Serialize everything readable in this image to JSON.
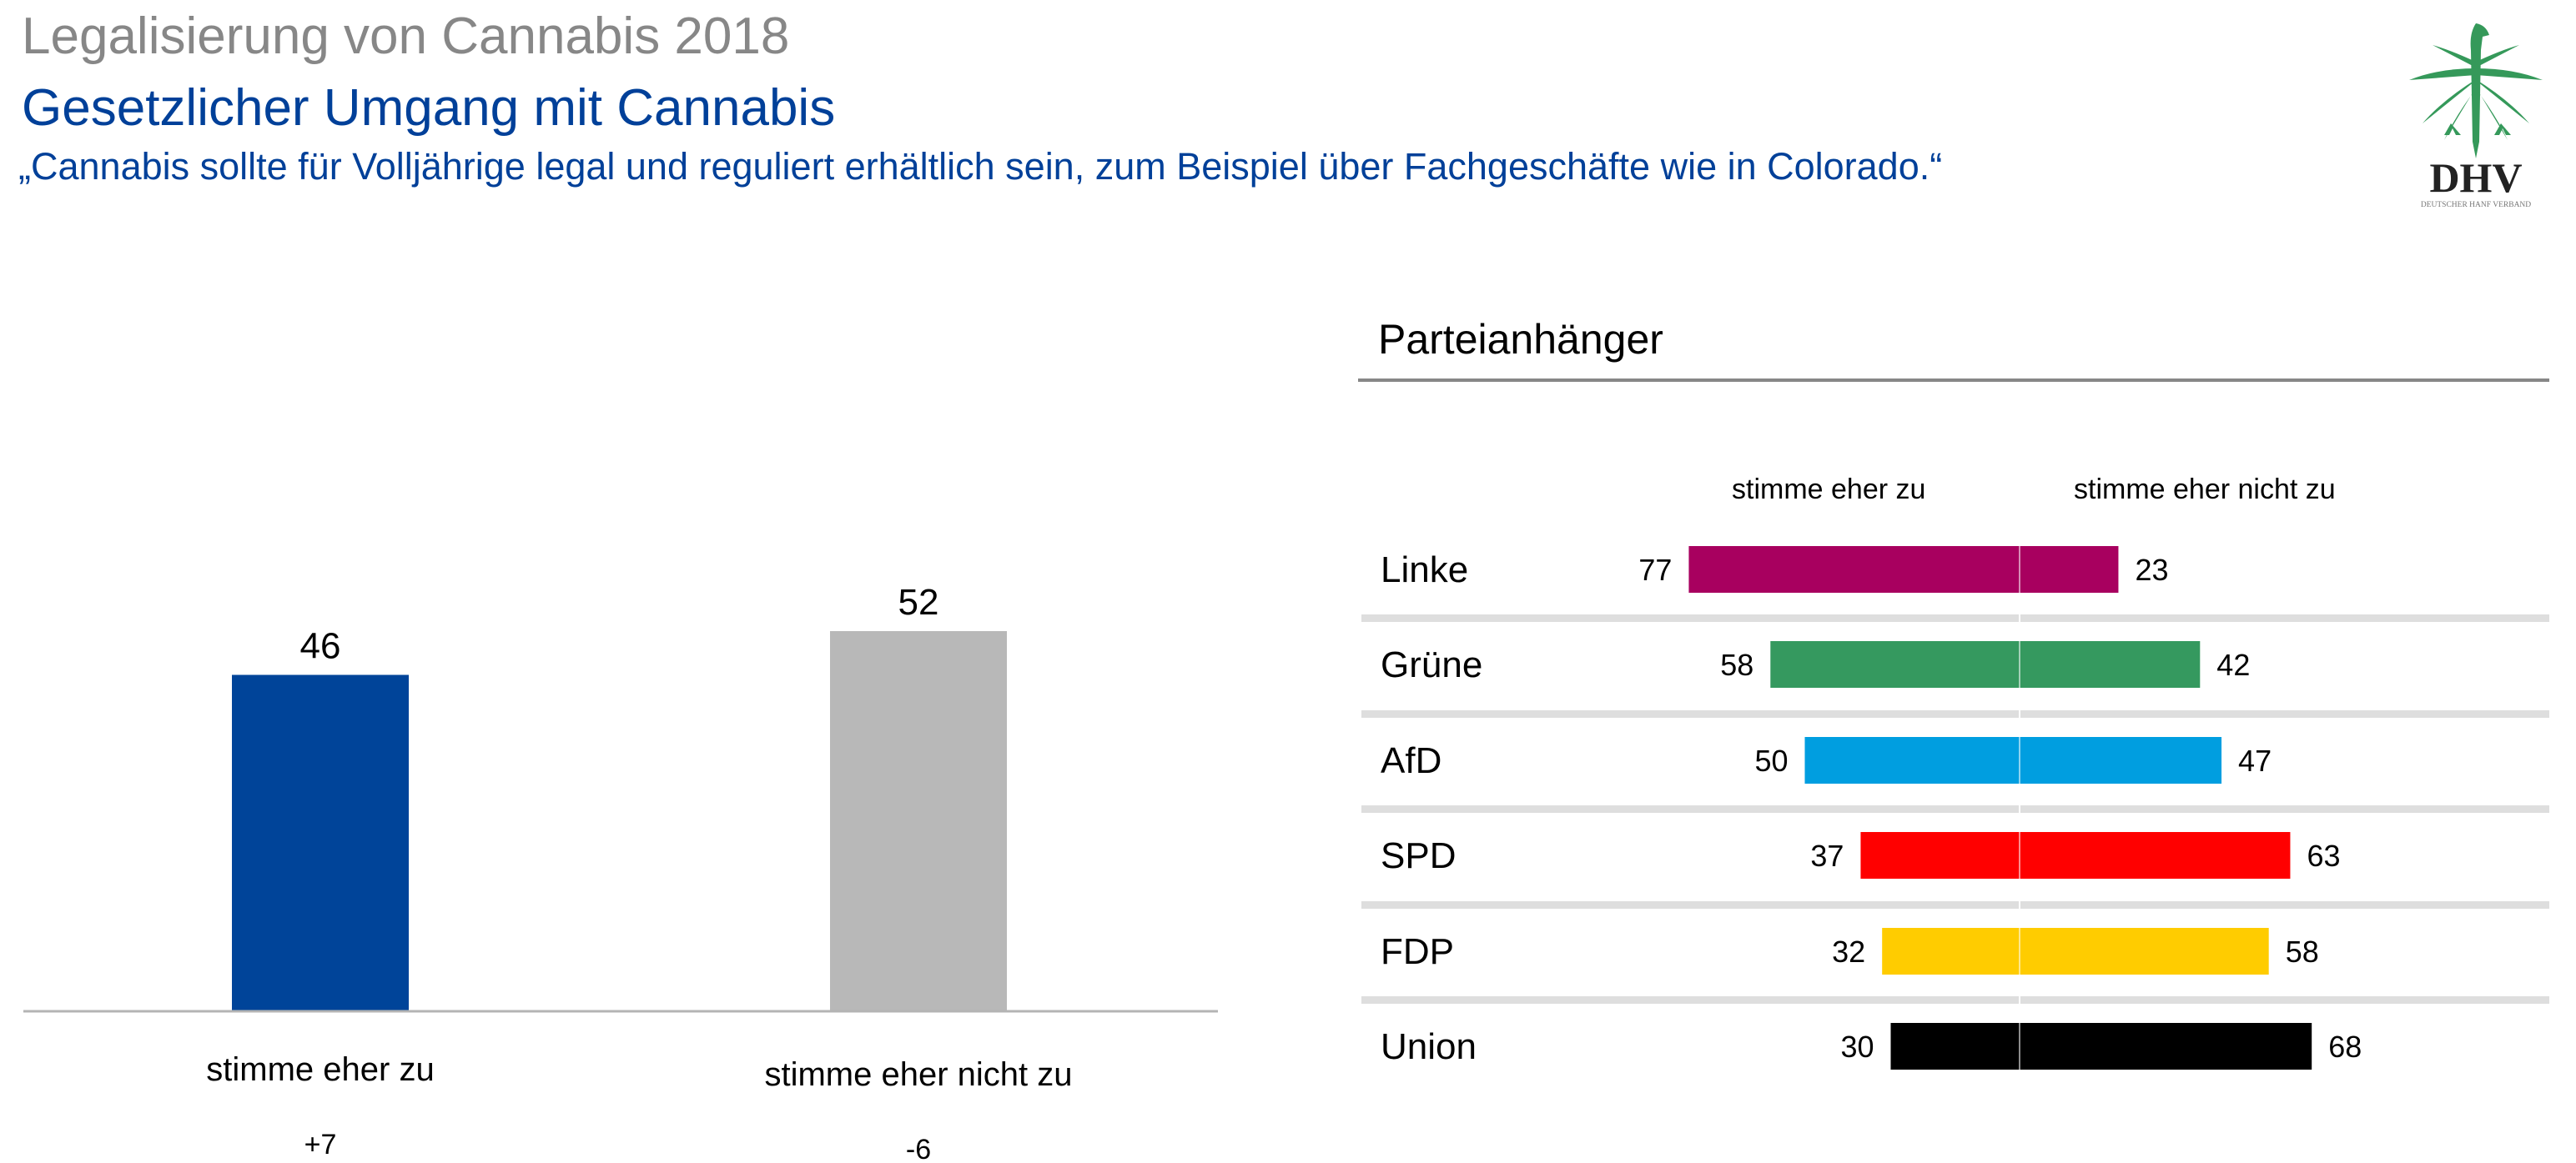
{
  "header": {
    "title": "Legalisierung von Cannabis 2018",
    "subtitle": "Gesetzlicher Umgang mit Cannabis",
    "statement": "„Cannabis sollte für Volljährige legal und reguliert erhältlich sein, zum Beispiel über Fachgeschäfte wie in Colorado.“"
  },
  "logo": {
    "icon": "cannabis-eagle-icon",
    "acronym": "DHV",
    "name": "DEUTSCHER HANF VERBAND",
    "color": "#35995a"
  },
  "chart_data": [
    {
      "type": "bar",
      "title": "",
      "categories": [
        "stimme eher zu",
        "stimme eher nicht zu"
      ],
      "values": [
        46,
        52
      ],
      "changes": [
        "+7",
        "-6"
      ],
      "colors": [
        "#004499",
        "#b8b8b8"
      ],
      "xlabel": "",
      "ylabel": "",
      "ylim": [
        0,
        60
      ],
      "grid": false,
      "legend": "none"
    },
    {
      "type": "bar",
      "orientation": "horizontal-diverging",
      "title": "Parteianhänger",
      "column_headers": [
        "stimme eher zu",
        "stimme eher nicht zu"
      ],
      "categories": [
        "Linke",
        "Grüne",
        "AfD",
        "SPD",
        "FDP",
        "Union"
      ],
      "series": [
        {
          "name": "stimme eher zu",
          "values": [
            77,
            58,
            50,
            37,
            32,
            30
          ]
        },
        {
          "name": "stimme eher nicht zu",
          "values": [
            23,
            42,
            47,
            63,
            58,
            68
          ]
        }
      ],
      "colors": [
        "#a8005f",
        "#35995f",
        "#009ee0",
        "#ff0000",
        "#ffcc00",
        "#000000"
      ],
      "xlim": [
        -80,
        80
      ],
      "grid": false,
      "legend": "top"
    }
  ]
}
